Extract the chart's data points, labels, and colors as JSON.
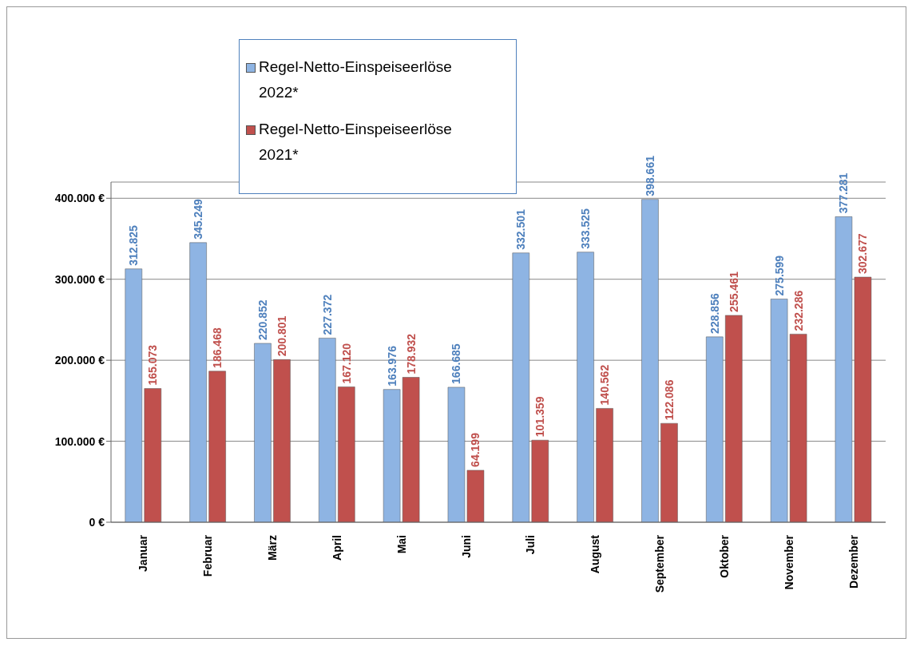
{
  "chart_data": {
    "type": "bar",
    "categories": [
      "Januar",
      "Februar",
      "März",
      "April",
      "Mai",
      "Juni",
      "Juli",
      "August",
      "September",
      "Oktober",
      "November",
      "Dezember"
    ],
    "series": [
      {
        "name": "Regel-Netto-Einspeiseerlöse 2022*",
        "color": "#8eb4e3",
        "values": [
          312825,
          345249,
          220852,
          227372,
          163976,
          166685,
          332501,
          333525,
          398661,
          228856,
          275599,
          377281
        ],
        "value_labels": [
          "312.825",
          "345.249",
          "220.852",
          "227.372",
          "163.976",
          "166.685",
          "332.501",
          "333.525",
          "398.661",
          "228.856",
          "275.599",
          "377.281"
        ]
      },
      {
        "name": "Regel-Netto-Einspeiseerlöse 2021*",
        "color": "#c0504d",
        "values": [
          165073,
          186468,
          200801,
          167120,
          178932,
          64199,
          101359,
          140562,
          122086,
          255461,
          232286,
          302677
        ],
        "value_labels": [
          "165.073",
          "186.468",
          "200.801",
          "167.120",
          "178.932",
          "64.199",
          "101.359",
          "140.562",
          "122.086",
          "255.461",
          "232.286",
          "302.677"
        ]
      }
    ],
    "ylim": [
      0,
      420000
    ],
    "yticks": [
      {
        "value": 0,
        "label": "0 €"
      },
      {
        "value": 100000,
        "label": "100.000 €"
      },
      {
        "value": 200000,
        "label": "200.000 €"
      },
      {
        "value": 300000,
        "label": "300.000 €"
      },
      {
        "value": 400000,
        "label": "400.000 €"
      }
    ],
    "grid": "y",
    "legend": "top"
  }
}
